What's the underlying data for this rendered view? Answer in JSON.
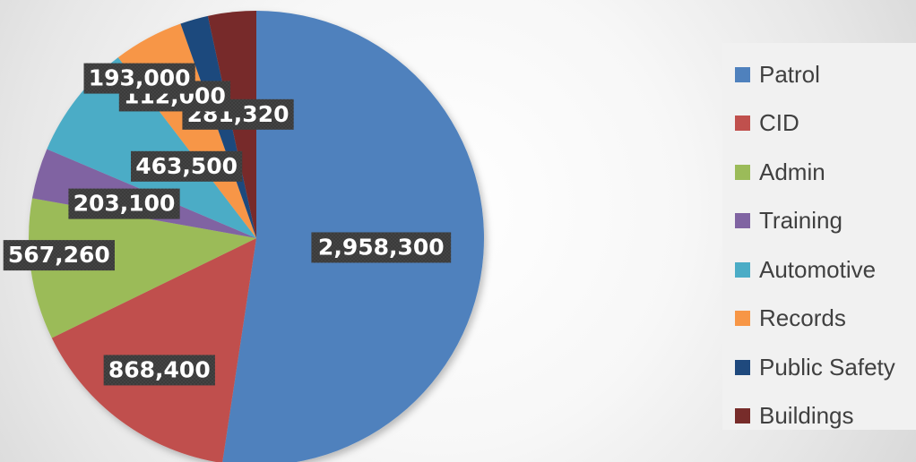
{
  "chart_data": {
    "type": "pie",
    "categories": [
      "Patrol",
      "CID",
      "Admin",
      "Training",
      "Automotive",
      "Records",
      "Public Safety",
      "Buildings"
    ],
    "values": [
      2958300,
      868400,
      567260,
      203100,
      463500,
      281320,
      112000,
      193000
    ],
    "value_labels": [
      "2,958,300",
      "868,400",
      "567,260",
      "203,100",
      "463,500",
      "281,320",
      "112,000",
      "193,000"
    ],
    "colors": [
      "#4F81BD",
      "#C0504D",
      "#9BBB59",
      "#8064A2",
      "#4BACC6",
      "#F79646",
      "#1F497D",
      "#772C2A"
    ],
    "title": "",
    "legend_position": "right",
    "start_angle_deg": 0,
    "direction": "clockwise"
  }
}
